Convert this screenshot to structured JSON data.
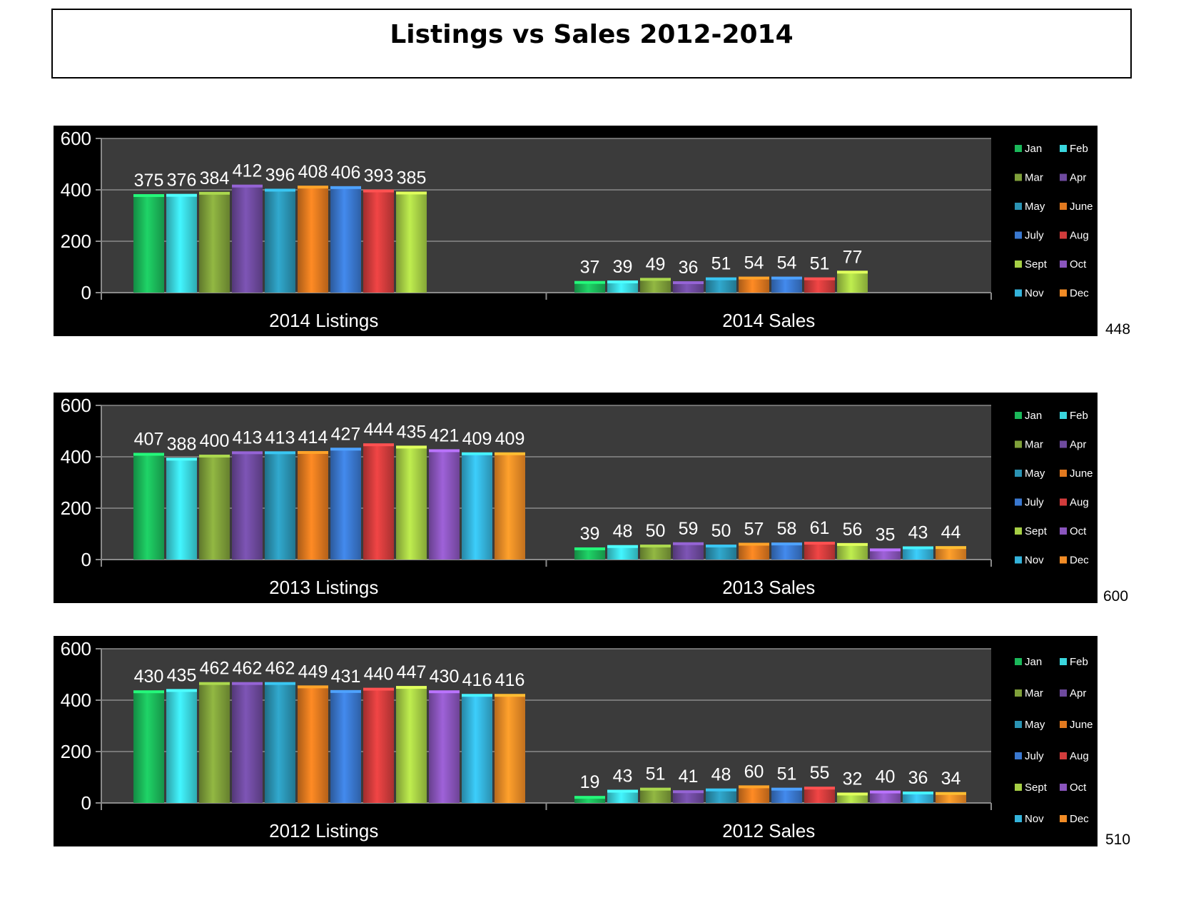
{
  "title": "Listings vs Sales 2012-2014",
  "colors": {
    "background": "#000000",
    "plot_area": "#3b3b3b",
    "gridline": "#8a8a8a",
    "text": "#ffffff",
    "months": {
      "Jan": "#1bb85a",
      "Feb": "#3ad6de",
      "Mar": "#7fa03a",
      "Apr": "#6e4a9e",
      "May": "#2b93b3",
      "June": "#e2791f",
      "July": "#3a78cf",
      "Aug": "#d23c3c",
      "Sept": "#a6cf45",
      "Oct": "#8a55bd",
      "Nov": "#34b3db",
      "Dec": "#f28c26"
    }
  },
  "chart_data": [
    {
      "type": "bar",
      "categories": [
        "2014 Listings",
        "2014 Sales"
      ],
      "legend": [
        "Jan",
        "Feb",
        "Mar",
        "Apr",
        "May",
        "June",
        "July",
        "Aug",
        "Sept",
        "Oct",
        "Nov",
        "Dec"
      ],
      "legend_position": "right",
      "series": [
        {
          "name": "Jan",
          "values": [
            375,
            37
          ]
        },
        {
          "name": "Feb",
          "values": [
            376,
            39
          ]
        },
        {
          "name": "Mar",
          "values": [
            384,
            49
          ]
        },
        {
          "name": "Apr",
          "values": [
            412,
            36
          ]
        },
        {
          "name": "May",
          "values": [
            396,
            51
          ]
        },
        {
          "name": "June",
          "values": [
            408,
            54
          ]
        },
        {
          "name": "July",
          "values": [
            406,
            54
          ]
        },
        {
          "name": "Aug",
          "values": [
            393,
            51
          ]
        },
        {
          "name": "Sept",
          "values": [
            385,
            77
          ]
        }
      ],
      "ylim": [
        0,
        600
      ],
      "yticks": [
        0,
        200,
        400,
        600
      ],
      "grid": true,
      "side_note": "448"
    },
    {
      "type": "bar",
      "categories": [
        "2013 Listings",
        "2013 Sales"
      ],
      "legend": [
        "Jan",
        "Feb",
        "Mar",
        "Apr",
        "May",
        "June",
        "July",
        "Aug",
        "Sept",
        "Oct",
        "Nov",
        "Dec"
      ],
      "legend_position": "right",
      "series": [
        {
          "name": "Jan",
          "values": [
            407,
            39
          ]
        },
        {
          "name": "Feb",
          "values": [
            388,
            48
          ]
        },
        {
          "name": "Mar",
          "values": [
            400,
            50
          ]
        },
        {
          "name": "Apr",
          "values": [
            413,
            59
          ]
        },
        {
          "name": "May",
          "values": [
            413,
            50
          ]
        },
        {
          "name": "June",
          "values": [
            414,
            57
          ]
        },
        {
          "name": "July",
          "values": [
            427,
            58
          ]
        },
        {
          "name": "Aug",
          "values": [
            444,
            61
          ]
        },
        {
          "name": "Sept",
          "values": [
            435,
            56
          ]
        },
        {
          "name": "Oct",
          "values": [
            421,
            35
          ]
        },
        {
          "name": "Nov",
          "values": [
            409,
            43
          ]
        },
        {
          "name": "Dec",
          "values": [
            409,
            44
          ]
        }
      ],
      "ylim": [
        0,
        600
      ],
      "yticks": [
        0,
        200,
        400,
        600
      ],
      "grid": true,
      "side_note": "600"
    },
    {
      "type": "bar",
      "categories": [
        "2012 Listings",
        "2012 Sales"
      ],
      "legend": [
        "Jan",
        "Feb",
        "Mar",
        "Apr",
        "May",
        "June",
        "July",
        "Aug",
        "Sept",
        "Oct",
        "Nov",
        "Dec"
      ],
      "legend_position": "right",
      "series": [
        {
          "name": "Jan",
          "values": [
            430,
            19
          ]
        },
        {
          "name": "Feb",
          "values": [
            435,
            43
          ]
        },
        {
          "name": "Mar",
          "values": [
            462,
            51
          ]
        },
        {
          "name": "Apr",
          "values": [
            462,
            41
          ]
        },
        {
          "name": "May",
          "values": [
            462,
            48
          ]
        },
        {
          "name": "June",
          "values": [
            449,
            60
          ]
        },
        {
          "name": "July",
          "values": [
            431,
            51
          ]
        },
        {
          "name": "Aug",
          "values": [
            440,
            55
          ]
        },
        {
          "name": "Sept",
          "values": [
            447,
            32
          ]
        },
        {
          "name": "Oct",
          "values": [
            430,
            40
          ]
        },
        {
          "name": "Nov",
          "values": [
            416,
            36
          ]
        },
        {
          "name": "Dec",
          "values": [
            416,
            34
          ]
        }
      ],
      "ylim": [
        0,
        600
      ],
      "yticks": [
        0,
        200,
        400,
        600
      ],
      "grid": true,
      "side_note": "510"
    }
  ]
}
